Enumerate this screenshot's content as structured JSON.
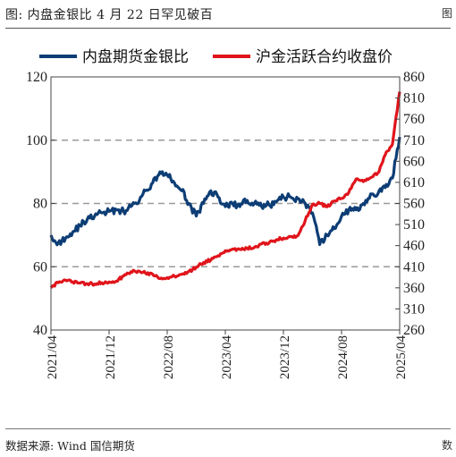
{
  "header": {
    "title": "图:  内盘金银比 4 月 22 日罕见破百",
    "corner_top": "图",
    "corner_bottom": "数"
  },
  "footer": {
    "source": "数据来源:  Wind  国信期货"
  },
  "colors": {
    "ratio": "#0d3d75",
    "price": "#e0141b",
    "grid": "#9a9a9a",
    "axis": "#444444"
  },
  "chart_data": {
    "type": "line",
    "title": "",
    "xlabel": "",
    "ylabel": "",
    "x_ticks": [
      "2021/04",
      "2021/12",
      "2022/08",
      "2023/04",
      "2023/12",
      "2024/08",
      "2025/04"
    ],
    "y_left": {
      "ticks": [
        40,
        60,
        80,
        100,
        120
      ],
      "lim": [
        40,
        120
      ],
      "grid": [
        60,
        80,
        100
      ]
    },
    "y_right": {
      "ticks": [
        260,
        310,
        360,
        410,
        460,
        510,
        560,
        610,
        660,
        710,
        760,
        810,
        860
      ],
      "lim": [
        260,
        860
      ]
    },
    "grid": true,
    "legend_position": "top",
    "series": [
      {
        "name": "内盘期货金银比",
        "axis": "left",
        "points": [
          [
            "2021/04",
            70
          ],
          [
            "2021/05",
            67.5
          ],
          [
            "2021/06",
            69
          ],
          [
            "2021/07",
            71
          ],
          [
            "2021/08",
            73
          ],
          [
            "2021/09",
            75
          ],
          [
            "2021/10",
            76
          ],
          [
            "2021/11",
            77
          ],
          [
            "2021/12",
            77.5
          ],
          [
            "2022/01",
            78
          ],
          [
            "2022/02",
            77.5
          ],
          [
            "2022/03",
            79
          ],
          [
            "2022/04",
            80
          ],
          [
            "2022/05",
            84
          ],
          [
            "2022/06",
            86.5
          ],
          [
            "2022/07",
            90
          ],
          [
            "2022/08",
            89
          ],
          [
            "2022/09",
            86.5
          ],
          [
            "2022/10",
            84
          ],
          [
            "2022/11",
            80
          ],
          [
            "2022/12",
            76
          ],
          [
            "2023/01",
            80
          ],
          [
            "2023/02",
            84
          ],
          [
            "2023/03",
            82
          ],
          [
            "2023/04",
            79
          ],
          [
            "2023/05",
            80
          ],
          [
            "2023/06",
            79
          ],
          [
            "2023/07",
            81
          ],
          [
            "2023/08",
            80
          ],
          [
            "2023/09",
            79
          ],
          [
            "2023/10",
            79.5
          ],
          [
            "2023/11",
            80.5
          ],
          [
            "2023/12",
            82
          ],
          [
            "2024/01",
            82
          ],
          [
            "2024/02",
            81.5
          ],
          [
            "2024/03",
            80
          ],
          [
            "2024/04",
            77
          ],
          [
            "2024/05",
            67
          ],
          [
            "2024/06",
            70
          ],
          [
            "2024/07",
            72
          ],
          [
            "2024/08",
            76
          ],
          [
            "2024/09",
            78
          ],
          [
            "2024/10",
            78
          ],
          [
            "2024/11",
            80
          ],
          [
            "2024/12",
            83
          ],
          [
            "2025/01",
            83
          ],
          [
            "2025/02",
            85
          ],
          [
            "2025/03",
            88
          ],
          [
            "2025/04",
            101
          ]
        ]
      },
      {
        "name": "沪金活跃合约收盘价",
        "axis": "right",
        "points": [
          [
            "2021/04",
            360
          ],
          [
            "2021/05",
            372
          ],
          [
            "2021/06",
            378
          ],
          [
            "2021/07",
            374
          ],
          [
            "2021/08",
            371
          ],
          [
            "2021/09",
            370
          ],
          [
            "2021/10",
            369
          ],
          [
            "2021/11",
            372
          ],
          [
            "2021/12",
            374
          ],
          [
            "2022/01",
            376
          ],
          [
            "2022/02",
            388
          ],
          [
            "2022/03",
            398
          ],
          [
            "2022/04",
            400
          ],
          [
            "2022/05",
            395
          ],
          [
            "2022/06",
            392
          ],
          [
            "2022/07",
            382
          ],
          [
            "2022/08",
            384
          ],
          [
            "2022/09",
            388
          ],
          [
            "2022/10",
            392
          ],
          [
            "2022/11",
            399
          ],
          [
            "2022/12",
            409
          ],
          [
            "2023/01",
            420
          ],
          [
            "2023/02",
            426
          ],
          [
            "2023/03",
            436
          ],
          [
            "2023/04",
            448
          ],
          [
            "2023/05",
            452
          ],
          [
            "2023/06",
            451
          ],
          [
            "2023/07",
            454
          ],
          [
            "2023/08",
            456
          ],
          [
            "2023/09",
            464
          ],
          [
            "2023/10",
            466
          ],
          [
            "2023/11",
            474
          ],
          [
            "2023/12",
            478
          ],
          [
            "2024/01",
            481
          ],
          [
            "2024/02",
            484
          ],
          [
            "2024/03",
            520
          ],
          [
            "2024/04",
            558
          ],
          [
            "2024/05",
            560
          ],
          [
            "2024/06",
            552
          ],
          [
            "2024/07",
            565
          ],
          [
            "2024/08",
            572
          ],
          [
            "2024/09",
            586
          ],
          [
            "2024/10",
            618
          ],
          [
            "2024/11",
            612
          ],
          [
            "2024/12",
            621
          ],
          [
            "2025/01",
            632
          ],
          [
            "2025/02",
            675
          ],
          [
            "2025/03",
            700
          ],
          [
            "2025/04",
            825
          ]
        ]
      }
    ]
  }
}
